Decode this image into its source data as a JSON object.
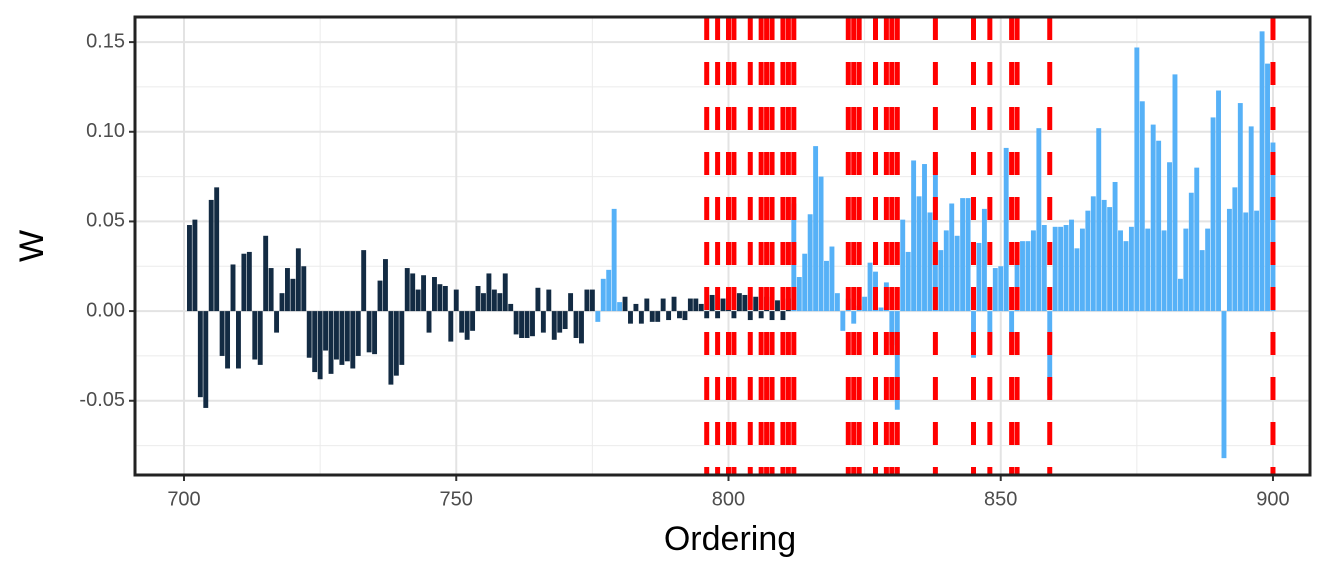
{
  "chart_data": {
    "type": "bar",
    "x_label": "Ordering",
    "y_label": "W",
    "x": [
      701,
      702,
      703,
      704,
      705,
      706,
      707,
      708,
      709,
      710,
      711,
      712,
      713,
      714,
      715,
      716,
      717,
      718,
      719,
      720,
      721,
      722,
      723,
      724,
      725,
      726,
      727,
      728,
      729,
      730,
      731,
      732,
      733,
      734,
      735,
      736,
      737,
      738,
      739,
      740,
      741,
      742,
      743,
      744,
      745,
      746,
      747,
      748,
      749,
      750,
      751,
      752,
      753,
      754,
      755,
      756,
      757,
      758,
      759,
      760,
      761,
      762,
      763,
      764,
      765,
      766,
      767,
      768,
      769,
      770,
      771,
      772,
      773,
      774,
      775,
      776,
      777,
      778,
      779,
      780,
      781,
      782,
      783,
      784,
      785,
      786,
      787,
      788,
      789,
      790,
      791,
      792,
      793,
      794,
      795,
      796,
      797,
      798,
      799,
      800,
      801,
      802,
      803,
      804,
      805,
      806,
      807,
      808,
      809,
      810,
      811,
      812,
      813,
      814,
      815,
      816,
      817,
      818,
      819,
      820,
      821,
      822,
      823,
      824,
      825,
      826,
      827,
      828,
      829,
      830,
      831,
      832,
      833,
      834,
      835,
      836,
      837,
      838,
      839,
      840,
      841,
      842,
      843,
      844,
      845,
      846,
      847,
      848,
      849,
      850,
      851,
      852,
      853,
      854,
      855,
      856,
      857,
      858,
      859,
      860,
      861,
      862,
      863,
      864,
      865,
      866,
      867,
      868,
      869,
      870,
      871,
      872,
      873,
      874,
      875,
      876,
      877,
      878,
      879,
      880,
      881,
      882,
      883,
      884,
      885,
      886,
      887,
      888,
      889,
      890,
      891,
      892,
      893,
      894,
      895,
      896,
      897,
      898,
      899,
      900
    ],
    "series": [
      {
        "color": "#132b43",
        "values": [
          0.048,
          0.051,
          -0.048,
          -0.054,
          0.062,
          0.069,
          -0.025,
          -0.032,
          0.026,
          -0.032,
          0.032,
          0.033,
          -0.027,
          -0.03,
          0.042,
          0.024,
          -0.012,
          0.01,
          0.024,
          0.018,
          0.035,
          0.025,
          -0.026,
          -0.034,
          -0.038,
          -0.022,
          -0.035,
          -0.027,
          -0.03,
          -0.028,
          -0.032,
          -0.025,
          0.034,
          -0.023,
          -0.024,
          0.017,
          0.029,
          -0.041,
          -0.036,
          -0.03,
          0.024,
          0.021,
          0.012,
          0.02,
          -0.012,
          0.019,
          0.015,
          0.014,
          -0.017,
          0.012,
          -0.012,
          -0.016,
          -0.011,
          0.014,
          0.01,
          0.021,
          0.012,
          0.01,
          0.021,
          0.004,
          -0.013,
          -0.015,
          -0.015,
          -0.014,
          0.013,
          -0.012,
          0.012,
          -0.016,
          -0.012,
          -0.01,
          0.01,
          -0.015,
          -0.018,
          0.012,
          0.012,
          null,
          null,
          null,
          null,
          null,
          0.008,
          -0.007,
          0.004,
          -0.007,
          0.007,
          -0.006,
          -0.006,
          0.007,
          -0.005,
          0.008,
          -0.004,
          -0.005,
          0.007,
          0.007,
          0.004,
          -0.004,
          0.009,
          -0.004,
          0.007,
          0.008,
          -0.004,
          0.01,
          0.009,
          -0.005,
          0.008,
          -0.004,
          0.008,
          -0.005,
          0.006,
          -0.005,
          0.007,
          null,
          null,
          null,
          null,
          null,
          null,
          null,
          null,
          null,
          null,
          null,
          null,
          null,
          null,
          null,
          null,
          null,
          null,
          null,
          null,
          null,
          null,
          null,
          null,
          null,
          null,
          null,
          null,
          null,
          null,
          null,
          null,
          null,
          null,
          null,
          null,
          null,
          null,
          null,
          null,
          null,
          null,
          null,
          null,
          null,
          null,
          null,
          null,
          null,
          null,
          null,
          null,
          null,
          null,
          null,
          null,
          null,
          null,
          null,
          null,
          null,
          null,
          null,
          null,
          null,
          null,
          null,
          null,
          null,
          null,
          null,
          null,
          null,
          null,
          null,
          null,
          null,
          null,
          null,
          null,
          null,
          null,
          null,
          null,
          null,
          null,
          null,
          null,
          null
        ]
      },
      {
        "color": "#56b1f7",
        "values": [
          null,
          null,
          null,
          null,
          null,
          null,
          null,
          null,
          null,
          null,
          null,
          null,
          null,
          null,
          null,
          null,
          null,
          null,
          null,
          null,
          null,
          null,
          null,
          null,
          null,
          null,
          null,
          null,
          null,
          null,
          null,
          null,
          null,
          null,
          null,
          null,
          null,
          null,
          null,
          null,
          null,
          null,
          null,
          null,
          null,
          null,
          null,
          null,
          null,
          null,
          null,
          null,
          null,
          null,
          null,
          null,
          null,
          null,
          null,
          null,
          null,
          null,
          null,
          null,
          null,
          null,
          null,
          null,
          null,
          null,
          null,
          null,
          null,
          null,
          null,
          -0.006,
          0.018,
          0.023,
          0.057,
          0.005,
          null,
          null,
          null,
          null,
          null,
          null,
          null,
          null,
          null,
          null,
          null,
          null,
          null,
          null,
          null,
          null,
          null,
          null,
          null,
          null,
          null,
          null,
          null,
          null,
          null,
          null,
          null,
          null,
          null,
          null,
          null,
          0.06,
          0.019,
          0.032,
          0.054,
          0.092,
          0.075,
          0.028,
          0.036,
          0.01,
          -0.011,
          0.007,
          -0.007,
          0.003,
          0.008,
          0.027,
          0.022,
          0.002,
          0.016,
          -0.019,
          -0.055,
          0.051,
          0.033,
          0.084,
          0.064,
          0.082,
          0.055,
          0.086,
          0.034,
          0.045,
          0.06,
          0.042,
          0.063,
          0.063,
          -0.026,
          0.038,
          0.057,
          -0.023,
          0.024,
          0.025,
          0.091,
          -0.016,
          0.029,
          0.039,
          0.039,
          0.045,
          0.102,
          0.048,
          -0.047,
          0.047,
          0.047,
          0.048,
          0.051,
          0.035,
          0.046,
          0.056,
          0.064,
          0.102,
          0.062,
          0.058,
          0.072,
          0.045,
          0.039,
          0.047,
          0.147,
          0.117,
          0.046,
          0.104,
          0.095,
          0.045,
          0.083,
          0.132,
          0.018,
          0.046,
          0.066,
          0.08,
          0.034,
          0.046,
          0.108,
          0.123,
          -0.082,
          0.057,
          0.069,
          0.116,
          0.055,
          0.103,
          0.056,
          0.156,
          0.138,
          0.094
        ]
      }
    ],
    "vlines": [
      796,
      798,
      800,
      801,
      804,
      806,
      807,
      808,
      810,
      811,
      812,
      822,
      823,
      824,
      827,
      829,
      830,
      831,
      838,
      845,
      848,
      852,
      853,
      859,
      900
    ],
    "vline_color": "#ff0000",
    "xlim": [
      691,
      906.8
    ],
    "xticks": [
      700,
      750,
      800,
      850,
      900
    ],
    "ylim": [
      -0.0914,
      0.164
    ],
    "yticks": [
      {
        "value": -0.05,
        "label": "-0.05"
      },
      {
        "value": 0,
        "label": "0.00"
      },
      {
        "value": 0.05,
        "label": "0.05"
      },
      {
        "value": 0.1,
        "label": "0.10"
      },
      {
        "value": 0.15,
        "label": "0.15"
      }
    ],
    "grid": true
  }
}
